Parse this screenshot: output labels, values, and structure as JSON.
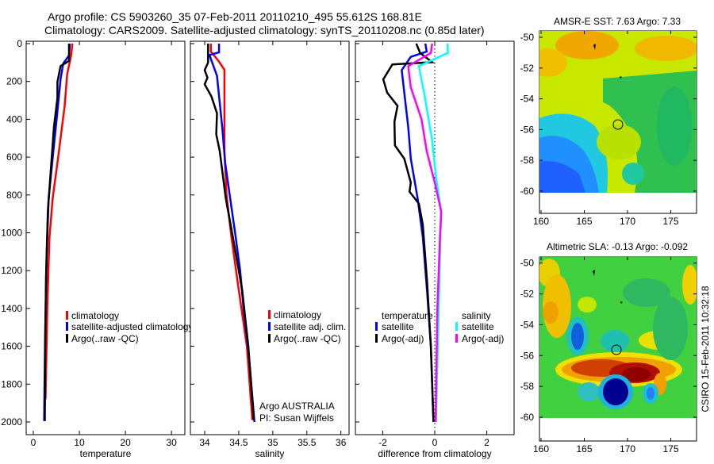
{
  "header": {
    "title_line1": "Argo profile: CS 5903260_35 07-Feb-2011 20110210_495 55.612S 168.81E",
    "title_line2": "Climatology: CARS2009. Satellite-adjusted climatology: synTS_20110208.nc (0.85d later)"
  },
  "colors": {
    "climatology": "#ff0000",
    "satellite": "#0000ff",
    "argo": "#000000",
    "sal_satellite": "#00ffff",
    "sal_argo": "#ff00ff"
  },
  "chart_data": [
    {
      "type": "line",
      "xlabel": "temperature",
      "ylabel": "",
      "xticks": [
        0,
        10,
        20,
        30
      ],
      "yticks": [
        0,
        200,
        400,
        600,
        800,
        1000,
        1200,
        1400,
        1600,
        1800,
        2000
      ],
      "ylim": [
        2070,
        -10
      ],
      "xlim": [
        -1.55,
        32.9
      ],
      "legend": [
        "climatology",
        "satellite-adjusted climatology",
        "Argo(..raw -QC)"
      ],
      "series": [
        {
          "name": "climatology",
          "color": "#ff0000",
          "points": [
            [
              8.5,
              0
            ],
            [
              8.2,
              63
            ],
            [
              7.35,
              161
            ],
            [
              6.8,
              329
            ],
            [
              5.35,
              608
            ],
            [
              4.2,
              818
            ],
            [
              3.5,
              1027
            ],
            [
              3.05,
              1376
            ],
            [
              2.65,
              1880
            ]
          ]
        },
        {
          "name": "satellite-adjusted climatology",
          "color": "#0000ff",
          "points": [
            [
              7.93,
              0
            ],
            [
              7.75,
              63
            ],
            [
              6.5,
              105
            ],
            [
              5.9,
              189
            ],
            [
              5.35,
              329
            ],
            [
              4.48,
              538
            ],
            [
              3.33,
              818
            ],
            [
              2.93,
              1097
            ],
            [
              2.59,
              1516
            ],
            [
              2.35,
              1995
            ]
          ]
        },
        {
          "name": "Argo(..raw -QC)",
          "color": "#000000",
          "points": [
            [
              7.75,
              0
            ],
            [
              7.75,
              91
            ],
            [
              5.9,
              119
            ],
            [
              5.23,
              203
            ],
            [
              5.23,
              287
            ],
            [
              4.48,
              441
            ],
            [
              3.9,
              636
            ],
            [
              3.16,
              888
            ],
            [
              2.76,
              1237
            ],
            [
              2.59,
              1600
            ],
            [
              2.5,
              1995
            ]
          ]
        }
      ]
    },
    {
      "type": "line",
      "xlabel": "salinity",
      "xticks": [
        34,
        34.5,
        35,
        35.5,
        36
      ],
      "ylim": [
        2070,
        -10
      ],
      "xlim": [
        33.79,
        36.12
      ],
      "legend": [
        "climatology",
        "satellite adj. clim.",
        "Argo(..raw -QC)"
      ],
      "annotation": [
        "Argo AUSTRALIA",
        "PI: Susan Wijffels"
      ],
      "series": [
        {
          "name": "climatology",
          "color": "#ff0000",
          "points": [
            [
              34.09,
              0
            ],
            [
              34.09,
              42
            ],
            [
              34.2,
              90
            ],
            [
              34.29,
              138
            ],
            [
              34.29,
              566
            ],
            [
              34.32,
              800
            ],
            [
              34.39,
              1015
            ],
            [
              34.5,
              1300
            ],
            [
              34.62,
              1600
            ],
            [
              34.7,
              1990
            ]
          ]
        },
        {
          "name": "satellite adj. clim.",
          "color": "#0000ff",
          "points": [
            [
              34.21,
              0
            ],
            [
              34.21,
              46
            ],
            [
              34.07,
              60
            ],
            [
              34.18,
              170
            ],
            [
              34.26,
              449
            ],
            [
              34.3,
              630
            ],
            [
              34.45,
              1011
            ],
            [
              34.52,
              1200
            ],
            [
              34.57,
              1400
            ],
            [
              34.65,
              1650
            ],
            [
              34.73,
              2000
            ]
          ]
        },
        {
          "name": "Argo(..raw -QC)",
          "color": "#000000",
          "points": [
            [
              34.05,
              0
            ],
            [
              34.05,
              100
            ],
            [
              34.0,
              140
            ],
            [
              34.04,
              180
            ],
            [
              34.0,
              215
            ],
            [
              34.1,
              280
            ],
            [
              34.18,
              368
            ],
            [
              34.17,
              480
            ],
            [
              34.22,
              566
            ],
            [
              34.31,
              818
            ],
            [
              34.41,
              1015
            ],
            [
              34.55,
              1300
            ],
            [
              34.64,
              1600
            ],
            [
              34.72,
              1990
            ]
          ]
        }
      ]
    },
    {
      "type": "line",
      "xlabel": "difference from climatology",
      "xticks": [
        -2,
        0,
        2
      ],
      "ylim": [
        2070,
        -10
      ],
      "xlim": [
        -3.05,
        3.05
      ],
      "legend_temperature": {
        "title": "temperature",
        "items": [
          "satellite",
          "Argo(-adj)"
        ]
      },
      "legend_salinity": {
        "title": "salinity",
        "items": [
          "satellite",
          "Argo(-adj)"
        ]
      },
      "series": [
        {
          "name": "temperature satellite",
          "color": "#0000ff",
          "points": [
            [
              -0.36,
              0
            ],
            [
              -0.31,
              42
            ],
            [
              -0.92,
              70
            ],
            [
              -1.27,
              140
            ],
            [
              -1.17,
              259
            ],
            [
              -1.02,
              441
            ],
            [
              -0.92,
              608
            ],
            [
              -0.66,
              818
            ],
            [
              -0.46,
              1020
            ],
            [
              -0.3,
              1300
            ],
            [
              -0.15,
              1600
            ],
            [
              -0.05,
              2000
            ]
          ]
        },
        {
          "name": "temperature Argo(-adj)",
          "color": "#000000",
          "points": [
            [
              -0.71,
              0
            ],
            [
              -0.56,
              49
            ],
            [
              -0.1,
              98
            ],
            [
              -1.63,
              110
            ],
            [
              -1.98,
              189
            ],
            [
              -1.83,
              259
            ],
            [
              -1.43,
              329
            ],
            [
              -1.55,
              413
            ],
            [
              -1.53,
              538
            ],
            [
              -1.17,
              608
            ],
            [
              -0.92,
              734
            ],
            [
              -0.97,
              783
            ],
            [
              -0.61,
              846
            ],
            [
              -0.46,
              957
            ],
            [
              -0.3,
              1250
            ],
            [
              -0.15,
              1600
            ],
            [
              -0.05,
              2000
            ]
          ]
        },
        {
          "name": "salinity satellite",
          "color": "#00ffff",
          "points": [
            [
              0.49,
              0
            ],
            [
              0.51,
              49
            ],
            [
              -0.61,
              119
            ],
            [
              -0.41,
              259
            ],
            [
              -0.1,
              510
            ],
            [
              0.05,
              706
            ],
            [
              0.25,
              888
            ],
            [
              0.22,
              1020
            ],
            [
              0.15,
              1400
            ],
            [
              0.05,
              2000
            ]
          ]
        },
        {
          "name": "salinity Argo(-adj)",
          "color": "#ff00ff",
          "points": [
            [
              -0.1,
              0
            ],
            [
              -0.15,
              49
            ],
            [
              -1.02,
              119
            ],
            [
              -0.92,
              231
            ],
            [
              -0.51,
              399
            ],
            [
              -0.31,
              566
            ],
            [
              0.0,
              734
            ],
            [
              0.25,
              888
            ],
            [
              0.2,
              1020
            ],
            [
              0.1,
              1400
            ],
            [
              0.03,
              2000
            ]
          ]
        }
      ]
    }
  ],
  "maps": {
    "sst": {
      "title": "AMSR-E SST: 7.63 Argo: 7.33"
    },
    "sla": {
      "title": "Altimetric SLA: -0.13 Argo: -0.092"
    },
    "lat_ticks": [
      "-50",
      "-52",
      "-54",
      "-56",
      "-58",
      "-60"
    ],
    "lon_ticks": [
      "160",
      "165",
      "170",
      "175"
    ],
    "footer": "CSIRO 15-Feb-2011 10:32:18"
  }
}
